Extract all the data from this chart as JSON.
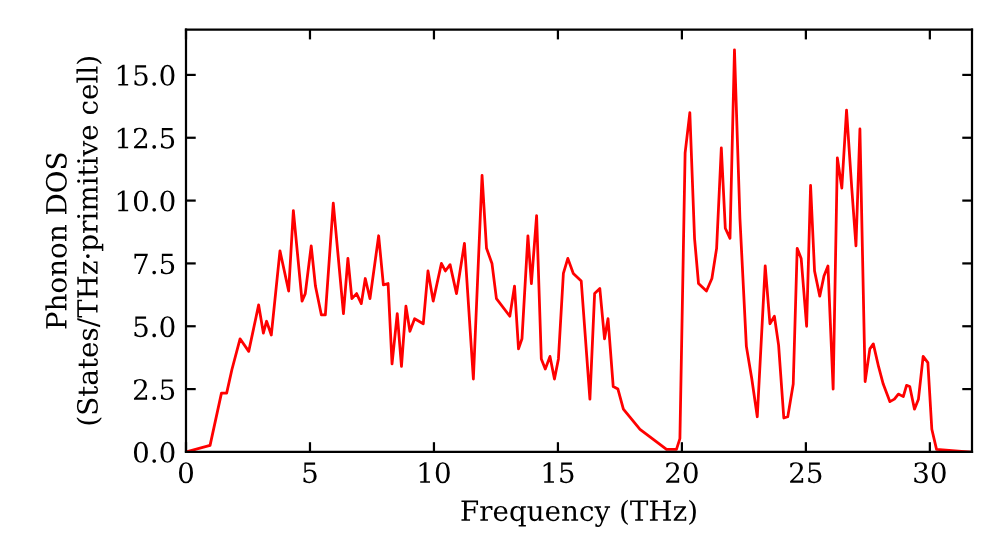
{
  "chart_data": {
    "type": "line",
    "xlabel": "Frequency (THz)",
    "ylabel": "Phonon DOS\n(States/THz·primitive cell)",
    "xlim": [
      0,
      31.7
    ],
    "ylim": [
      0,
      16.8
    ],
    "xticks": [
      0,
      5,
      10,
      15,
      20,
      25,
      30
    ],
    "yticks": [
      {
        "value": 0,
        "label": "0.0"
      },
      {
        "value": 2.5,
        "label": "2.5"
      },
      {
        "value": 5,
        "label": "5.0"
      },
      {
        "value": 7.5,
        "label": "7.5"
      },
      {
        "value": 10,
        "label": "10.0"
      },
      {
        "value": 12.5,
        "label": "12.5"
      },
      {
        "value": 15,
        "label": "15.0"
      }
    ],
    "grid": false,
    "marker": "none",
    "line_style": "solid",
    "series": [
      {
        "color": "#ff0000",
        "x": [
          0,
          0.97,
          1.43,
          1.64,
          1.85,
          2.18,
          2.53,
          2.93,
          3.12,
          3.25,
          3.44,
          3.79,
          4.14,
          4.33,
          4.68,
          4.81,
          5.05,
          5.22,
          5.46,
          5.62,
          5.94,
          6.35,
          6.53,
          6.69,
          6.88,
          7.07,
          7.23,
          7.42,
          7.77,
          7.96,
          8.15,
          8.31,
          8.52,
          8.69,
          8.87,
          9.03,
          9.22,
          9.57,
          9.76,
          9.97,
          10.3,
          10.46,
          10.65,
          10.91,
          11.23,
          11.59,
          11.94,
          12.12,
          12.34,
          12.52,
          13.06,
          13.25,
          13.41,
          13.55,
          13.79,
          13.93,
          14.14,
          14.33,
          14.49,
          14.68,
          14.86,
          15.02,
          15.22,
          15.4,
          15.62,
          15.94,
          16.29,
          16.48,
          16.69,
          16.88,
          17.02,
          17.23,
          17.42,
          17.64,
          18.31,
          18.98,
          19.38,
          19.78,
          19.92,
          20.13,
          20.32,
          20.51,
          20.67,
          20.99,
          21.21,
          21.4,
          21.59,
          21.75,
          21.94,
          22.12,
          22.34,
          22.6,
          22.82,
          23.04,
          23.36,
          23.55,
          23.73,
          23.9,
          24.11,
          24.27,
          24.49,
          24.65,
          24.81,
          25.03,
          25.19,
          25.35,
          25.56,
          25.73,
          25.89,
          26.1,
          26.27,
          26.45,
          26.64,
          26.85,
          27.02,
          27.18,
          27.39,
          27.58,
          27.72,
          27.93,
          28.12,
          28.39,
          28.57,
          28.73,
          28.93,
          29.06,
          29.19,
          29.38,
          29.54,
          29.73,
          29.92,
          30.08,
          30.27,
          31.6
        ],
        "values": [
          0,
          0.26,
          2.34,
          2.34,
          3.27,
          4.5,
          4.0,
          5.85,
          4.73,
          5.2,
          4.65,
          8.0,
          6.4,
          9.6,
          6.0,
          6.3,
          8.2,
          6.6,
          5.45,
          5.45,
          9.9,
          5.5,
          7.7,
          6.1,
          6.3,
          5.9,
          6.9,
          6.1,
          8.6,
          6.65,
          6.7,
          3.5,
          5.5,
          3.4,
          5.8,
          4.8,
          5.3,
          5.1,
          7.2,
          6.0,
          7.5,
          7.2,
          7.45,
          6.3,
          8.3,
          2.9,
          11.0,
          8.1,
          7.5,
          6.1,
          5.4,
          6.6,
          4.1,
          4.5,
          8.6,
          6.7,
          9.4,
          3.7,
          3.3,
          3.8,
          2.9,
          3.7,
          7.1,
          7.7,
          7.1,
          6.8,
          2.1,
          6.3,
          6.5,
          4.5,
          5.3,
          2.6,
          2.5,
          1.7,
          0.9,
          0.4,
          0.1,
          0.1,
          0.53,
          11.9,
          13.5,
          8.5,
          6.7,
          6.4,
          6.9,
          8.1,
          12.1,
          8.9,
          8.5,
          16.0,
          9.3,
          4.2,
          2.9,
          1.4,
          7.4,
          5.1,
          5.4,
          4.25,
          1.35,
          1.4,
          2.7,
          8.1,
          7.7,
          5.0,
          10.6,
          7.2,
          6.2,
          7.0,
          7.4,
          2.5,
          11.7,
          10.5,
          13.6,
          10.5,
          8.2,
          12.85,
          2.8,
          4.1,
          4.3,
          3.4,
          2.7,
          2.0,
          2.1,
          2.3,
          2.2,
          2.65,
          2.6,
          1.7,
          2.1,
          3.8,
          3.55,
          0.9,
          0.1,
          0
        ]
      }
    ]
  }
}
